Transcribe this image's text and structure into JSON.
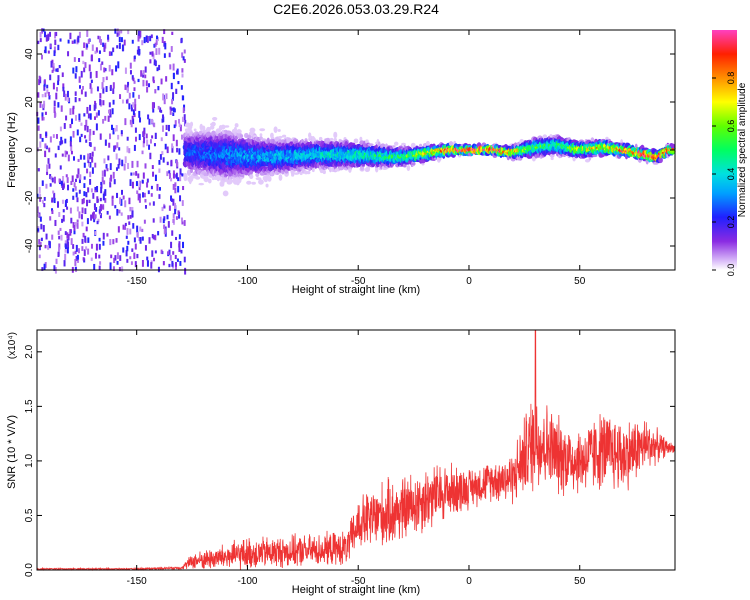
{
  "title": "C2E6.2026.053.03.29.R24",
  "chart_data": [
    {
      "type": "heatmap",
      "xlabel": "Height of straight line (km)",
      "ylabel": "Frequency (Hz)",
      "xlim": [
        -195,
        93
      ],
      "ylim": [
        -50,
        50
      ],
      "xticks": [
        -150,
        -100,
        -50,
        0,
        50
      ],
      "yticks": [
        -40,
        -20,
        0,
        20,
        40
      ],
      "colorbar": {
        "label": "Normalized spectral amplitude",
        "range": [
          0,
          1
        ],
        "ticks": [
          "0.0",
          "0.2",
          "0.4",
          "0.6",
          "0.8"
        ]
      },
      "ridge": {
        "x": [
          -128,
          -110,
          -90,
          -70,
          -50,
          -30,
          -10,
          0,
          10,
          20,
          30,
          40,
          50,
          60,
          70,
          80,
          85,
          90
        ],
        "center_hz": [
          -1,
          -2,
          -3,
          -2,
          -2,
          -3,
          0,
          0,
          0,
          -1,
          1,
          2,
          0,
          1,
          0,
          -2,
          -3,
          0
        ],
        "half_width_hz": [
          12,
          14,
          10,
          8,
          7,
          5,
          3,
          2,
          2,
          3,
          5,
          5,
          4,
          4,
          3,
          3,
          3,
          2
        ],
        "peak_amplitude": [
          0.25,
          0.3,
          0.35,
          0.4,
          0.45,
          0.5,
          0.85,
          0.95,
          0.95,
          0.8,
          0.55,
          0.5,
          0.65,
          0.75,
          0.85,
          0.95,
          0.9,
          0.95
        ]
      },
      "noise_region": {
        "x": [
          -195,
          -128
        ],
        "amplitude": 0.12
      }
    },
    {
      "type": "line",
      "xlabel": "Height of straight line (km)",
      "ylabel": "SNR (10 * V/V)",
      "yscale_label": "(x10⁴)",
      "xlim": [
        -195,
        93
      ],
      "ylim": [
        0,
        2.2
      ],
      "xticks": [
        -150,
        -100,
        -50,
        0,
        50
      ],
      "yticks": [
        0,
        0.5,
        1.0,
        1.5,
        2.0
      ],
      "ytick_labels": [
        "0.0",
        "0.5",
        "1.0",
        "1.5",
        "2.0"
      ],
      "series": [
        {
          "color": "#ee3333",
          "x": [
            -195,
            -150,
            -130,
            -125,
            -110,
            -100,
            -90,
            -70,
            -55,
            -50,
            -40,
            -30,
            -20,
            -10,
            0,
            10,
            20,
            25,
            30,
            35,
            40,
            50,
            60,
            70,
            80,
            90,
            93
          ],
          "mean": [
            0.01,
            0.01,
            0.02,
            0.08,
            0.12,
            0.15,
            0.16,
            0.18,
            0.2,
            0.42,
            0.5,
            0.55,
            0.65,
            0.72,
            0.75,
            0.82,
            0.85,
            1.05,
            1.2,
            1.15,
            1.05,
            1.0,
            1.1,
            1.05,
            1.15,
            1.12,
            1.12
          ],
          "spread": [
            0.005,
            0.005,
            0.01,
            0.06,
            0.1,
            0.12,
            0.12,
            0.12,
            0.13,
            0.2,
            0.25,
            0.25,
            0.25,
            0.22,
            0.15,
            0.15,
            0.2,
            0.3,
            0.4,
            0.32,
            0.3,
            0.25,
            0.3,
            0.28,
            0.2,
            0.05,
            0.03
          ],
          "peak": {
            "x": 30,
            "y": 2.2
          }
        }
      ]
    }
  ]
}
